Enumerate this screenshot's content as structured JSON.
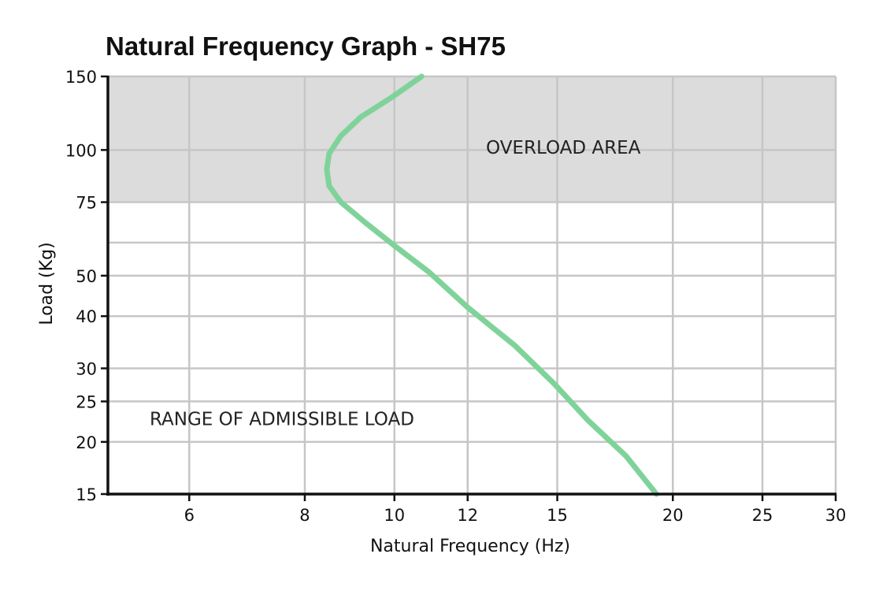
{
  "chart_data": {
    "type": "line",
    "title": "Natural Frequency Graph - SH75",
    "xlabel": "Natural Frequency (Hz)",
    "ylabel": "Load (Kg)",
    "x_scale": "log",
    "y_scale": "log",
    "xlim": [
      4.9,
      30
    ],
    "ylim": [
      15,
      150
    ],
    "x_ticks": [
      6,
      8,
      10,
      12,
      15,
      20,
      25,
      30
    ],
    "y_ticks": [
      15,
      20,
      25,
      30,
      40,
      50,
      75,
      100,
      150
    ],
    "x_gridlines": [
      4.9,
      6,
      8,
      10,
      12,
      15,
      20,
      25,
      30
    ],
    "y_gridlines": [
      15,
      20,
      25,
      30,
      40,
      50,
      60,
      75,
      100,
      150
    ],
    "grid": true,
    "regions": [
      {
        "name": "overload",
        "label": "OVERLOAD AREA",
        "from": 75,
        "to": 150,
        "color": "#dcdcdc"
      },
      {
        "name": "admissible",
        "label": "RANGE OF ADMISSIBLE LOAD",
        "from": 15,
        "to": 75,
        "color": "#ffffff"
      }
    ],
    "series": [
      {
        "name": "SH75",
        "color": "#7fd39a",
        "points": [
          {
            "x": 10.7,
            "y": 150
          },
          {
            "x": 9.9,
            "y": 133
          },
          {
            "x": 9.2,
            "y": 120
          },
          {
            "x": 8.75,
            "y": 108
          },
          {
            "x": 8.5,
            "y": 98
          },
          {
            "x": 8.45,
            "y": 90
          },
          {
            "x": 8.5,
            "y": 82
          },
          {
            "x": 8.75,
            "y": 75
          },
          {
            "x": 9.3,
            "y": 67
          },
          {
            "x": 10.0,
            "y": 59
          },
          {
            "x": 10.9,
            "y": 51
          },
          {
            "x": 12.0,
            "y": 42
          },
          {
            "x": 13.5,
            "y": 34
          },
          {
            "x": 14.9,
            "y": 27.5
          },
          {
            "x": 16.2,
            "y": 22.5
          },
          {
            "x": 17.8,
            "y": 18.5
          },
          {
            "x": 19.2,
            "y": 15
          }
        ]
      }
    ]
  }
}
